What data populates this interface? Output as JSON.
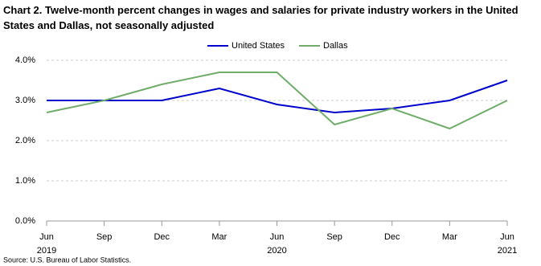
{
  "chart_data": {
    "type": "line",
    "title": "Chart 2. Twelve-month percent changes in wages and salaries for private industry workers in the United States and Dallas, not seasonally adjusted",
    "categories": [
      "Jun",
      "Sep",
      "Dec",
      "Mar",
      "Jun",
      "Sep",
      "Dec",
      "Mar",
      "Jun"
    ],
    "year_labels": [
      "2019",
      null,
      null,
      null,
      "2020",
      null,
      null,
      null,
      "2021"
    ],
    "series": [
      {
        "name": "United States",
        "color": "#0000cc",
        "values": [
          3.0,
          3.0,
          3.0,
          3.3,
          2.9,
          2.7,
          2.8,
          3.0,
          3.5
        ]
      },
      {
        "name": "Dallas",
        "color": "#70ad6a",
        "values": [
          2.7,
          3.0,
          3.4,
          3.7,
          3.7,
          2.4,
          2.8,
          2.3,
          3.0
        ]
      }
    ],
    "ylim": [
      0,
      4
    ],
    "yticks": [
      {
        "value": 0,
        "label": "0.0%"
      },
      {
        "value": 1,
        "label": "1.0%"
      },
      {
        "value": 2,
        "label": "2.0%"
      },
      {
        "value": 3,
        "label": "3.0%"
      },
      {
        "value": 4,
        "label": "4.0%"
      }
    ],
    "grid": true,
    "legend": "top",
    "source": "Source: U.S. Bureau of Labor Statistics."
  }
}
